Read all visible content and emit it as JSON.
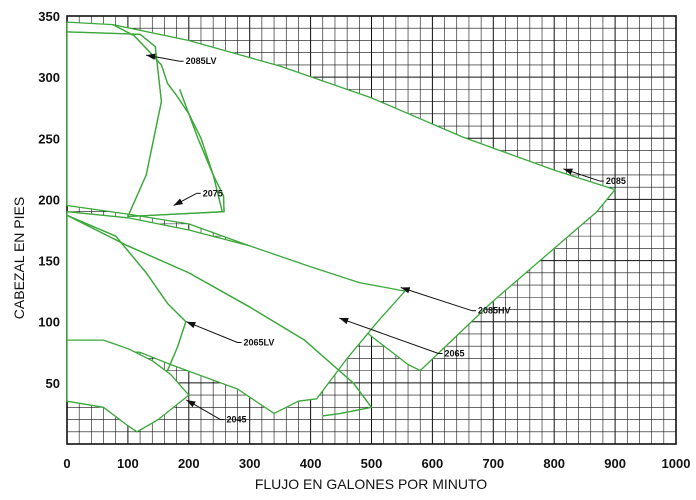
{
  "chart_data": {
    "type": "line",
    "title": "",
    "xlabel": "FLUJO EN GALONES POR MINUTO",
    "ylabel": "CABEZAL EN PIES",
    "xlim": [
      0,
      1000
    ],
    "ylim": [
      0,
      350
    ],
    "x_ticks": [
      "0",
      "100",
      "200",
      "300",
      "400",
      "500",
      "600",
      "700",
      "800",
      "900",
      "1000"
    ],
    "y_ticks": [
      "50",
      "100",
      "150",
      "200",
      "250",
      "300",
      "350"
    ],
    "grid": true,
    "grid_minor_step": {
      "x": 20,
      "y": 10
    },
    "colors": {
      "curve": "#3aa83a",
      "grid": "#111111",
      "background": "#ffffff",
      "text": "#111111"
    },
    "series": [
      {
        "name": "2085",
        "points": [
          [
            0,
            345
          ],
          [
            75,
            343
          ],
          [
            200,
            330
          ],
          [
            350,
            309
          ],
          [
            500,
            283
          ],
          [
            650,
            251
          ],
          [
            800,
            224
          ],
          [
            900,
            208
          ],
          [
            870,
            190
          ],
          [
            700,
            117
          ],
          [
            580,
            60
          ],
          [
            560,
            65
          ],
          [
            500,
            88
          ],
          [
            400,
            131
          ],
          [
            300,
            162
          ],
          [
            200,
            180
          ],
          [
            100,
            188
          ],
          [
            0,
            195
          ]
        ]
      },
      {
        "name": "2085LV",
        "points": [
          [
            75,
            343
          ],
          [
            110,
            334
          ],
          [
            135,
            321
          ],
          [
            155,
            310
          ],
          [
            165,
            295
          ],
          [
            180,
            285
          ],
          [
            200,
            270
          ],
          [
            220,
            250
          ],
          [
            240,
            220
          ],
          [
            257,
            203
          ],
          [
            258,
            190
          ],
          [
            100,
            186
          ],
          [
            130,
            220
          ],
          [
            155,
            280
          ],
          [
            145,
            325
          ],
          [
            120,
            335
          ],
          [
            0,
            337
          ]
        ]
      },
      {
        "name": "2075",
        "points": [
          [
            255,
            190
          ],
          [
            240,
            220
          ],
          [
            215,
            250
          ],
          [
            185,
            290
          ]
        ]
      },
      {
        "name": "2085HV",
        "points": [
          [
            0,
            190
          ],
          [
            100,
            185
          ],
          [
            200,
            175
          ],
          [
            300,
            162
          ],
          [
            400,
            145
          ],
          [
            480,
            132
          ],
          [
            555,
            125
          ],
          [
            510,
            100
          ],
          [
            460,
            70
          ],
          [
            410,
            37
          ],
          [
            380,
            35
          ],
          [
            340,
            25
          ],
          [
            280,
            45
          ],
          [
            170,
            65
          ],
          [
            120,
            75
          ],
          [
            0,
            78
          ]
        ]
      },
      {
        "name": "2065",
        "points": [
          [
            0,
            187
          ],
          [
            80,
            170
          ],
          [
            130,
            140
          ],
          [
            165,
            115
          ],
          [
            195,
            100
          ],
          [
            182,
            80
          ],
          [
            165,
            60
          ]
        ]
      },
      {
        "name": "2065LV",
        "points": [
          [
            0,
            187
          ],
          [
            100,
            162
          ],
          [
            200,
            140
          ],
          [
            300,
            112
          ],
          [
            390,
            85
          ],
          [
            470,
            50
          ],
          [
            500,
            30
          ],
          [
            450,
            25
          ],
          [
            420,
            23
          ]
        ]
      },
      {
        "name": "2045",
        "points": [
          [
            0,
            85
          ],
          [
            60,
            85
          ],
          [
            100,
            78
          ],
          [
            140,
            68
          ],
          [
            170,
            57
          ],
          [
            200,
            40
          ],
          [
            150,
            20
          ],
          [
            115,
            10
          ],
          [
            100,
            15
          ],
          [
            60,
            30
          ],
          [
            0,
            35
          ]
        ]
      }
    ],
    "annotations": [
      {
        "label": "2085LV",
        "from": [
          185,
          313
        ],
        "to": [
          130,
          318
        ]
      },
      {
        "label": "2075",
        "from": [
          213,
          205
        ],
        "to": [
          175,
          195
        ]
      },
      {
        "label": "2085",
        "from": [
          875,
          215
        ],
        "to": [
          815,
          225
        ]
      },
      {
        "label": "2085HV",
        "from": [
          665,
          109
        ],
        "to": [
          548,
          128
        ]
      },
      {
        "label": "2065",
        "from": [
          610,
          74
        ],
        "to": [
          447,
          103
        ]
      },
      {
        "label": "2065LV",
        "from": [
          280,
          83
        ],
        "to": [
          196,
          100
        ]
      },
      {
        "label": "2045",
        "from": [
          252,
          20
        ],
        "to": [
          196,
          36
        ]
      }
    ]
  }
}
